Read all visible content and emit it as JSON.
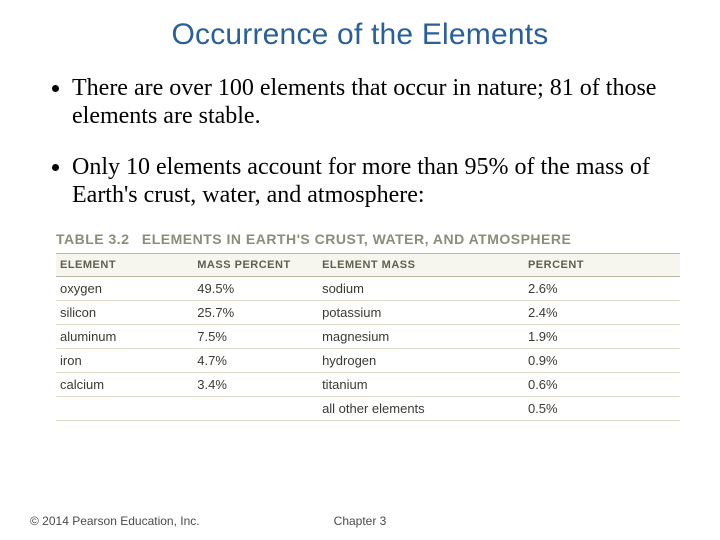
{
  "title": "Occurrence of the Elements",
  "bullets": [
    "There are over 100 elements that occur in nature; 81 of those elements are stable.",
    "Only 10 elements account for more than 95% of the mass of Earth's crust, water, and atmosphere:"
  ],
  "table": {
    "caption_number": "TABLE 3.2",
    "caption_text": "ELEMENTS IN EARTH'S CRUST, WATER, AND ATMOSPHERE",
    "headers": [
      "ELEMENT",
      "MASS PERCENT",
      "ELEMENT MASS",
      "PERCENT"
    ],
    "rows": [
      [
        "oxygen",
        "49.5%",
        "sodium",
        "2.6%"
      ],
      [
        "silicon",
        "25.7%",
        "potassium",
        "2.4%"
      ],
      [
        "aluminum",
        "7.5%",
        "magnesium",
        "1.9%"
      ],
      [
        "iron",
        "4.7%",
        "hydrogen",
        "0.9%"
      ],
      [
        "calcium",
        "3.4%",
        "titanium",
        "0.6%"
      ],
      [
        "",
        "",
        "all other elements",
        "0.5%"
      ]
    ],
    "colors": {
      "header_bg": "#f6f6ee",
      "header_text": "#5e6050",
      "border_strong": "#b7b89f",
      "border_row": "#dcdcca",
      "cell_text": "#3a3a34",
      "caption_text": "#8b8d7a"
    }
  },
  "footer": {
    "copyright": "© 2014 Pearson Education, Inc.",
    "chapter": "Chapter 3"
  }
}
